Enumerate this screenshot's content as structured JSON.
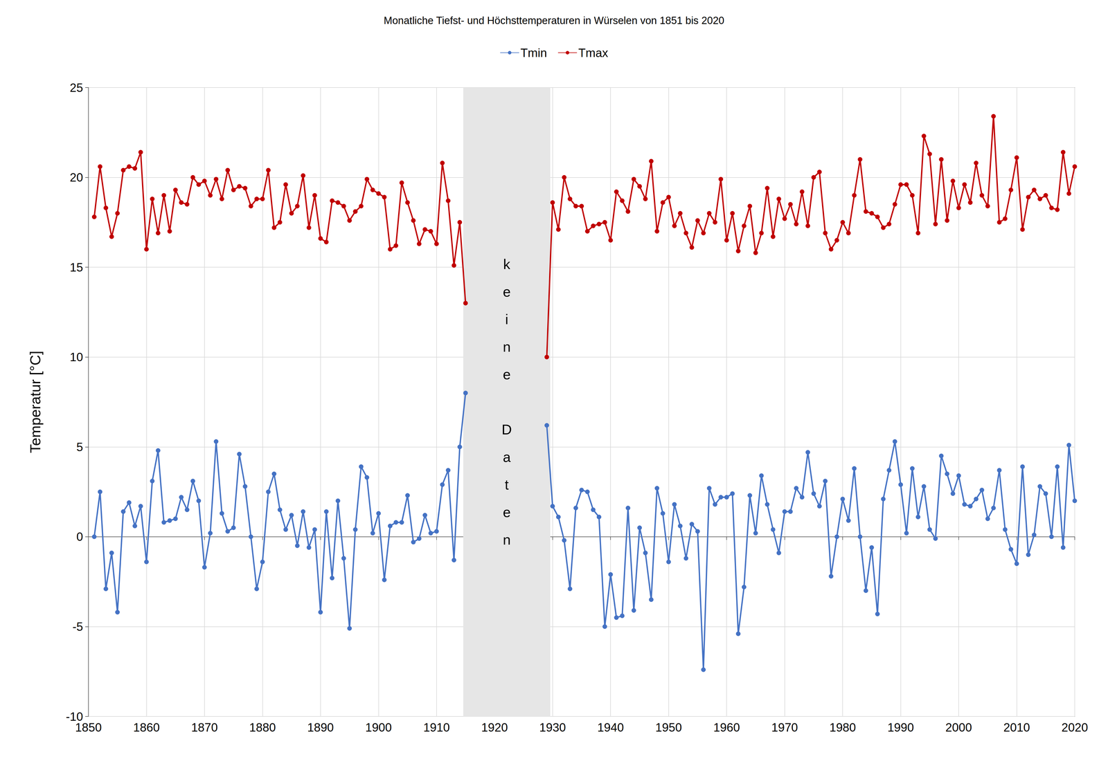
{
  "chart_data": {
    "type": "line",
    "title": "Monatliche Tiefst- und Höchsttemperaturen in Würselen von 1851 bis 2020",
    "y_label": "Temperatur [°C]",
    "x": [
      1851,
      1852,
      1853,
      1854,
      1855,
      1856,
      1857,
      1858,
      1859,
      1860,
      1861,
      1862,
      1863,
      1864,
      1865,
      1866,
      1867,
      1868,
      1869,
      1870,
      1871,
      1872,
      1873,
      1874,
      1875,
      1876,
      1877,
      1878,
      1879,
      1880,
      1881,
      1882,
      1883,
      1884,
      1885,
      1886,
      1887,
      1888,
      1889,
      1890,
      1891,
      1892,
      1893,
      1894,
      1895,
      1896,
      1897,
      1898,
      1899,
      1900,
      1901,
      1902,
      1903,
      1904,
      1905,
      1906,
      1907,
      1908,
      1909,
      1910,
      1911,
      1912,
      1913,
      1914,
      1915,
      1916,
      1917,
      1918,
      1919,
      1920,
      1921,
      1922,
      1923,
      1924,
      1925,
      1926,
      1927,
      1928,
      1929,
      1930,
      1931,
      1932,
      1933,
      1934,
      1935,
      1936,
      1937,
      1938,
      1939,
      1940,
      1941,
      1942,
      1943,
      1944,
      1945,
      1946,
      1947,
      1948,
      1949,
      1950,
      1951,
      1952,
      1953,
      1954,
      1955,
      1956,
      1957,
      1958,
      1959,
      1960,
      1961,
      1962,
      1963,
      1964,
      1965,
      1966,
      1967,
      1968,
      1969,
      1970,
      1971,
      1972,
      1973,
      1974,
      1975,
      1976,
      1977,
      1978,
      1979,
      1980,
      1981,
      1982,
      1983,
      1984,
      1985,
      1986,
      1987,
      1988,
      1989,
      1990,
      1991,
      1992,
      1993,
      1994,
      1995,
      1996,
      1997,
      1998,
      1999,
      2000,
      2001,
      2002,
      2003,
      2004,
      2005,
      2006,
      2007,
      2008,
      2009,
      2010,
      2011,
      2012,
      2013,
      2014,
      2015,
      2016,
      2017,
      2018,
      2019,
      2020
    ],
    "series": [
      {
        "name": "Tmin",
        "color": "#4472c4",
        "marker": "circle",
        "values": [
          0.0,
          2.5,
          -2.9,
          -0.9,
          -4.2,
          1.4,
          1.9,
          0.6,
          1.7,
          -1.4,
          3.1,
          4.8,
          0.8,
          0.9,
          1.0,
          2.2,
          1.5,
          3.1,
          2.0,
          -1.7,
          0.2,
          5.3,
          1.3,
          0.3,
          0.5,
          4.6,
          2.8,
          0.0,
          -2.9,
          -1.4,
          2.5,
          3.5,
          1.5,
          0.4,
          1.2,
          -0.5,
          1.4,
          -0.6,
          0.4,
          -4.2,
          1.4,
          -2.3,
          2.0,
          -1.2,
          -5.1,
          0.4,
          3.9,
          3.3,
          0.2,
          1.3,
          -2.4,
          0.6,
          0.8,
          0.8,
          2.3,
          -0.3,
          -0.1,
          1.2,
          0.2,
          0.3,
          2.9,
          3.7,
          -1.3,
          5.0,
          8.0,
          null,
          null,
          null,
          null,
          null,
          null,
          null,
          null,
          null,
          null,
          null,
          null,
          null,
          6.2,
          1.7,
          1.1,
          -0.2,
          -2.9,
          1.6,
          2.6,
          2.5,
          1.5,
          1.1,
          -5.0,
          -2.1,
          -4.5,
          -4.4,
          1.6,
          -4.1,
          0.5,
          -0.9,
          -3.5,
          2.7,
          1.3,
          -1.4,
          1.8,
          0.6,
          -1.2,
          0.7,
          0.3,
          -7.4,
          2.7,
          1.8,
          2.2,
          2.2,
          2.4,
          -5.4,
          -2.8,
          2.3,
          0.2,
          3.4,
          1.8,
          0.4,
          -0.9,
          1.4,
          1.4,
          2.7,
          2.2,
          4.7,
          2.4,
          1.7,
          3.1,
          -2.2,
          0.0,
          2.1,
          0.9,
          3.8,
          0.0,
          -3.0,
          -0.6,
          -4.3,
          2.1,
          3.7,
          5.3,
          2.9,
          0.2,
          3.8,
          1.1,
          2.8,
          0.4,
          -0.1,
          4.5,
          3.5,
          2.4,
          3.4,
          1.8,
          1.7,
          2.1,
          2.6,
          1.0,
          1.6,
          3.7,
          0.4,
          -0.7,
          -1.5,
          3.9,
          -1.0,
          0.1,
          2.8,
          2.4,
          0.0,
          3.9,
          -0.6,
          5.1,
          2.0
        ]
      },
      {
        "name": "Tmax",
        "color": "#c00000",
        "marker": "circle",
        "values": [
          17.8,
          20.6,
          18.3,
          16.7,
          18.0,
          20.4,
          20.6,
          20.5,
          21.4,
          16.0,
          18.8,
          16.9,
          19.0,
          17.0,
          19.3,
          18.6,
          18.5,
          20.0,
          19.6,
          19.8,
          19.0,
          19.9,
          18.8,
          20.4,
          19.3,
          19.5,
          19.4,
          18.4,
          18.8,
          18.8,
          20.4,
          17.2,
          17.5,
          19.6,
          18.0,
          18.4,
          20.1,
          17.2,
          19.0,
          16.6,
          16.4,
          18.7,
          18.6,
          18.4,
          17.6,
          18.1,
          18.4,
          19.9,
          19.3,
          19.1,
          18.9,
          16.0,
          16.2,
          19.7,
          18.6,
          17.6,
          16.3,
          17.1,
          17.0,
          16.3,
          20.8,
          18.7,
          15.1,
          17.5,
          13.0,
          null,
          null,
          null,
          null,
          null,
          null,
          null,
          null,
          null,
          null,
          null,
          null,
          null,
          10.0,
          18.6,
          17.1,
          20.0,
          18.8,
          18.4,
          18.4,
          17.0,
          17.3,
          17.4,
          17.5,
          16.5,
          19.2,
          18.7,
          18.1,
          19.9,
          19.5,
          18.8,
          20.9,
          17.0,
          18.6,
          18.9,
          17.3,
          18.0,
          16.9,
          16.1,
          17.6,
          16.9,
          18.0,
          17.5,
          19.9,
          16.5,
          18.0,
          15.9,
          17.3,
          18.4,
          15.8,
          16.9,
          19.4,
          16.7,
          18.8,
          17.7,
          18.5,
          17.4,
          19.2,
          17.3,
          20.0,
          20.3,
          16.9,
          16.0,
          16.5,
          17.5,
          16.9,
          19.0,
          21.0,
          18.1,
          18.0,
          17.8,
          17.2,
          17.4,
          18.5,
          19.6,
          19.6,
          19.0,
          16.9,
          22.3,
          21.3,
          17.4,
          21.0,
          17.6,
          19.8,
          18.3,
          19.6,
          18.6,
          20.8,
          19.0,
          18.4,
          23.4,
          17.5,
          17.7,
          19.3,
          21.1,
          17.1,
          18.9,
          19.3,
          18.8,
          19.0,
          18.3,
          18.2,
          21.4,
          19.1,
          20.6
        ]
      }
    ],
    "xlim": [
      1850,
      2020
    ],
    "xticks": [
      1850,
      1860,
      1870,
      1880,
      1890,
      1900,
      1910,
      1920,
      1930,
      1940,
      1950,
      1960,
      1970,
      1980,
      1990,
      2000,
      2010,
      2020
    ],
    "ylim": [
      -10,
      25
    ],
    "yticks": [
      -10,
      -5,
      0,
      5,
      10,
      15,
      20,
      25
    ],
    "grid": true,
    "legend": "top",
    "annotations": [
      {
        "text": "keine Daten",
        "x_range": [
          1914.6,
          1929.6
        ]
      }
    ]
  }
}
